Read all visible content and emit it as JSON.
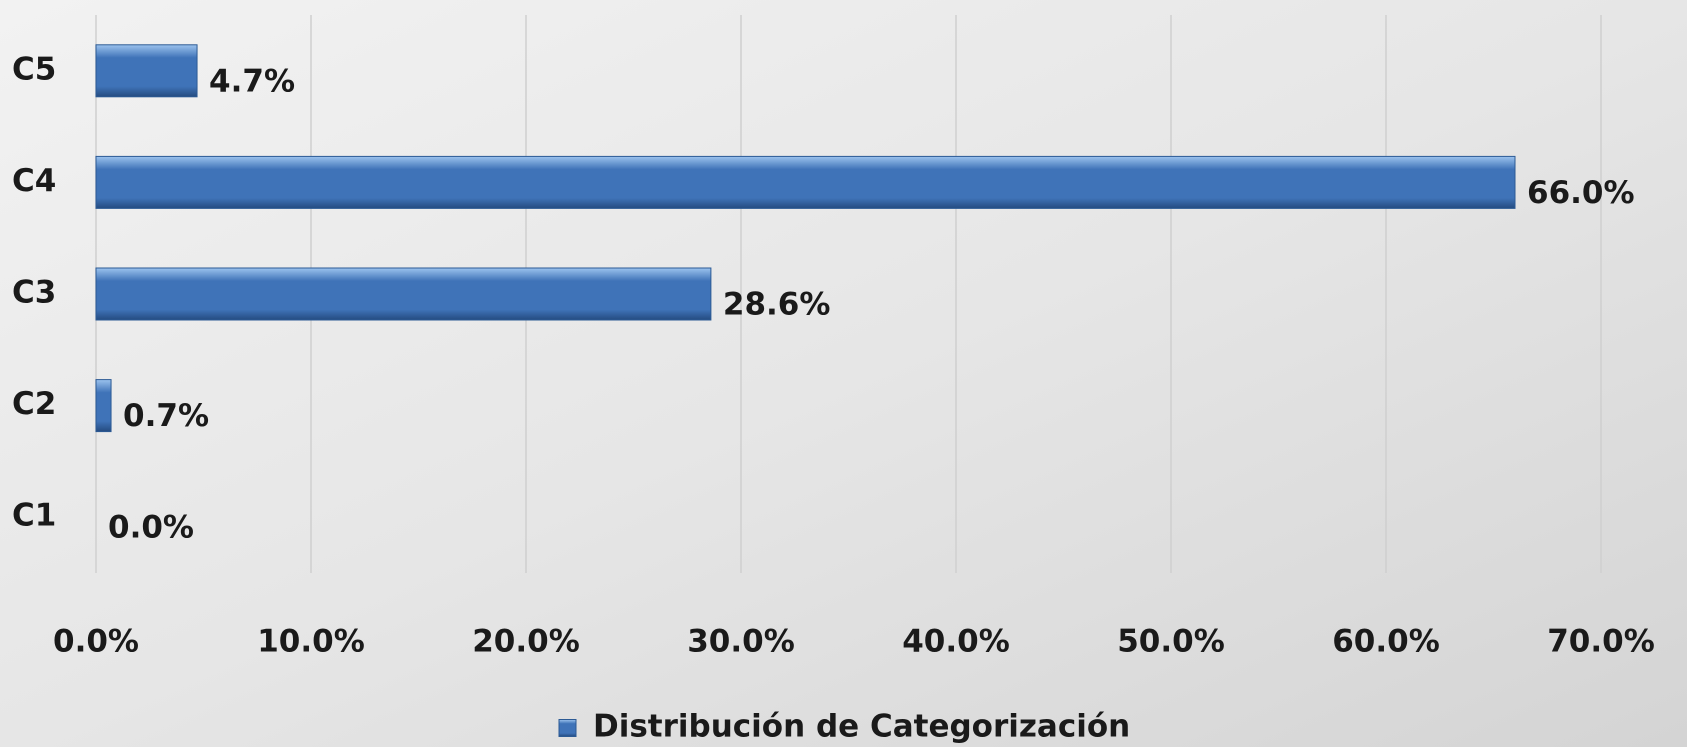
{
  "chart_data": {
    "type": "bar",
    "orientation": "horizontal",
    "categories": [
      "C1",
      "C2",
      "C3",
      "C4",
      "C5"
    ],
    "series": [
      {
        "name": "Distribución de Categorización",
        "color": "#3f73b8",
        "values": [
          0.0,
          0.7,
          28.6,
          66.0,
          4.7
        ],
        "value_labels": [
          "0.0%",
          "0.7%",
          "28.6%",
          "66.0%",
          "4.7%"
        ]
      }
    ],
    "xlim": [
      0,
      70
    ],
    "xticks": [
      {
        "value": 0,
        "label": "0.0%"
      },
      {
        "value": 10,
        "label": "10.0%"
      },
      {
        "value": 20,
        "label": "20.0%"
      },
      {
        "value": 30,
        "label": "30.0%"
      },
      {
        "value": 40,
        "label": "40.0%"
      },
      {
        "value": 50,
        "label": "50.0%"
      },
      {
        "value": 60,
        "label": "60.0%"
      },
      {
        "value": 70,
        "label": "70.0%"
      }
    ],
    "grid": true,
    "legend": "bottom"
  }
}
